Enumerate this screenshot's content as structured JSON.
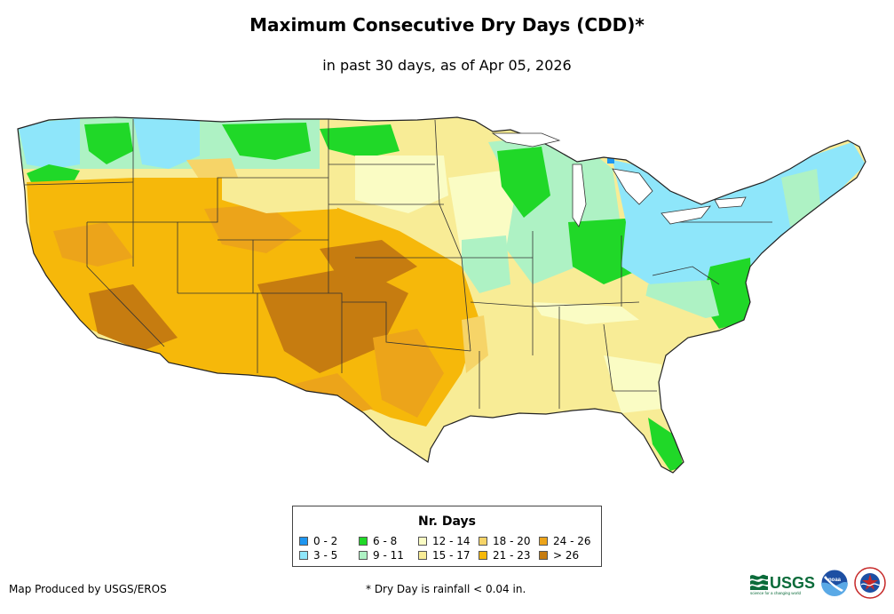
{
  "title": "Maximum Consecutive Dry Days (CDD)*",
  "subtitle": "in past 30 days, as of Apr 05, 2026",
  "legend": {
    "title": "Nr. Days",
    "items": [
      {
        "label": "0 - 2",
        "color": "#1e96f0"
      },
      {
        "label": "3 - 5",
        "color": "#8ee6fa"
      },
      {
        "label": "6 - 8",
        "color": "#20d828"
      },
      {
        "label": "9 - 11",
        "color": "#aef2c4"
      },
      {
        "label": "12 - 14",
        "color": "#fafcc4"
      },
      {
        "label": "15 - 17",
        "color": "#f8ec96"
      },
      {
        "label": "18 - 20",
        "color": "#f6d468"
      },
      {
        "label": "21 - 23",
        "color": "#f6b80a"
      },
      {
        "label": "24 - 26",
        "color": "#eca41a"
      },
      {
        "label": "> 26",
        "color": "#c67c10"
      }
    ]
  },
  "footer": {
    "producer": "Map Produced by USGS/EROS",
    "note": "* Dry Day is rainfall < 0.04 in."
  },
  "logos": {
    "usgs_text": "USGS",
    "usgs_tagline": "science for a changing world",
    "noaa_text": "noaa"
  }
}
